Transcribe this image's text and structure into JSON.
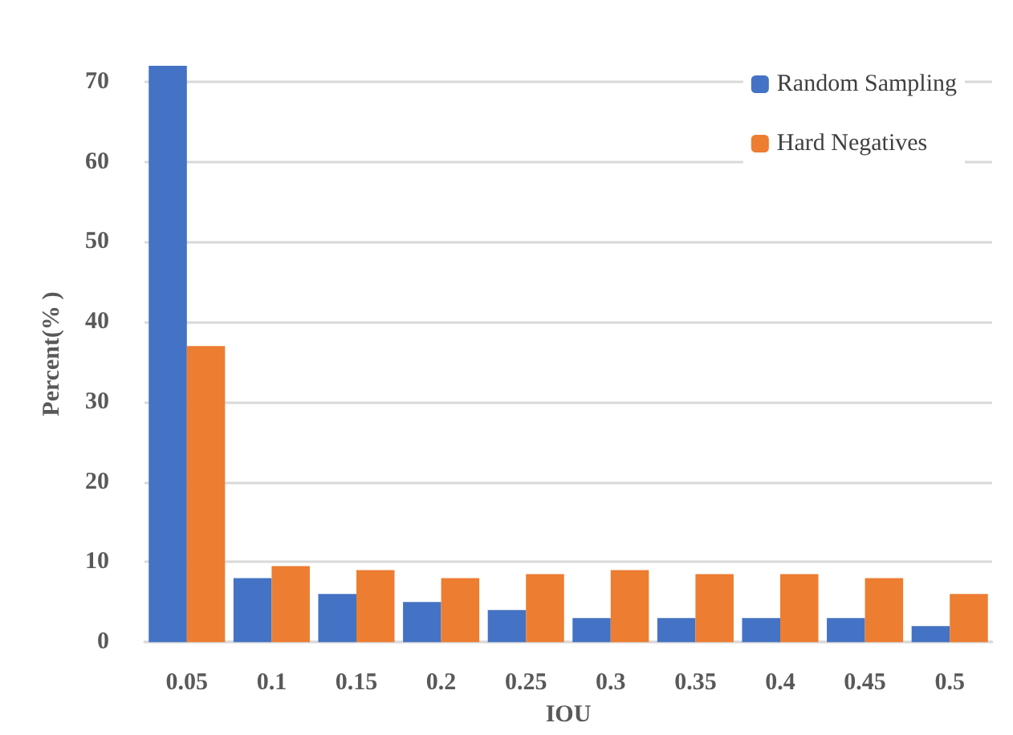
{
  "chart_data": {
    "type": "bar",
    "xlabel": "IOU",
    "ylabel": "Percent(% )",
    "categories": [
      "0.05",
      "0.1",
      "0.15",
      "0.2",
      "0.25",
      "0.3",
      "0.35",
      "0.4",
      "0.45",
      "0.5"
    ],
    "series": [
      {
        "name": "Random Sampling",
        "color": "#4472c4",
        "values": [
          72,
          8,
          6,
          5,
          4,
          3,
          3,
          3,
          3,
          2
        ]
      },
      {
        "name": "Hard Negatives",
        "color": "#ed7d31",
        "values": [
          37,
          9.5,
          9,
          8,
          8.5,
          9,
          8.5,
          8.5,
          8,
          6
        ]
      }
    ],
    "ylim": [
      0,
      72
    ],
    "yticks": [
      0,
      10,
      20,
      30,
      40,
      50,
      60,
      70
    ],
    "grid": "y",
    "legend": "top right"
  }
}
